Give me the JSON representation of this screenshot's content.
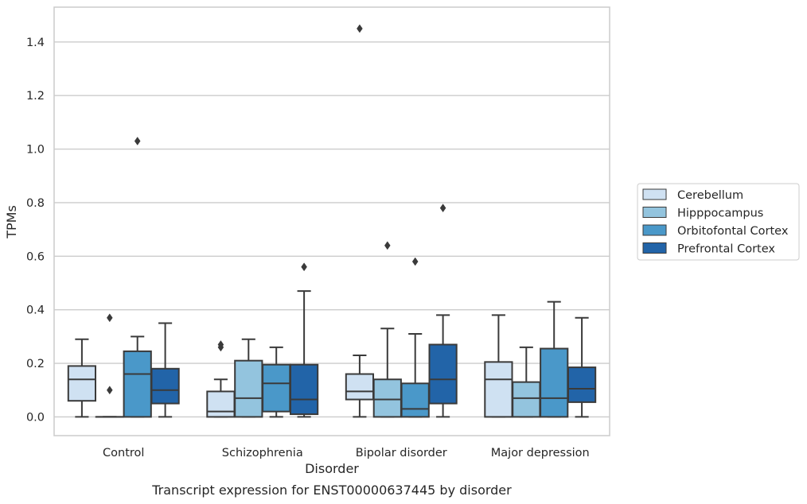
{
  "caption": "Transcript expression for ENST00000637445 by disorder",
  "chart_data": {
    "type": "box",
    "title": "",
    "xlabel": "Disorder",
    "ylabel": "TPMs",
    "ylim": [
      -0.07,
      1.53
    ],
    "yticks": [
      "0.0",
      "0.2",
      "0.4",
      "0.6",
      "0.8",
      "1.0",
      "1.2",
      "1.4"
    ],
    "grid": "horizontal",
    "legend_position": "right",
    "categories": [
      "Control",
      "Schizophrenia",
      "Bipolar disorder",
      "Major depression"
    ],
    "series": [
      {
        "name": "Cerebellum",
        "color": "#cfe1f2",
        "boxes": [
          {
            "whislo": 0.0,
            "q1": 0.06,
            "med": 0.14,
            "q3": 0.19,
            "whishi": 0.29,
            "fliers": []
          },
          {
            "whislo": 0.0,
            "q1": 0.0,
            "med": 0.02,
            "q3": 0.095,
            "whishi": 0.14,
            "fliers": [
              0.26,
              0.27
            ]
          },
          {
            "whislo": 0.0,
            "q1": 0.065,
            "med": 0.095,
            "q3": 0.16,
            "whishi": 0.23,
            "fliers": [
              1.45
            ]
          },
          {
            "whislo": 0.0,
            "q1": 0.0,
            "med": 0.14,
            "q3": 0.205,
            "whishi": 0.38,
            "fliers": []
          }
        ]
      },
      {
        "name": "Hipppocampus",
        "color": "#93c4de",
        "boxes": [
          {
            "whislo": 0.0,
            "q1": 0.0,
            "med": 0.0,
            "q3": 0.0,
            "whishi": 0.0,
            "fliers": [
              0.1,
              0.37
            ]
          },
          {
            "whislo": 0.0,
            "q1": 0.0,
            "med": 0.07,
            "q3": 0.21,
            "whishi": 0.29,
            "fliers": []
          },
          {
            "whislo": 0.0,
            "q1": 0.0,
            "med": 0.065,
            "q3": 0.14,
            "whishi": 0.33,
            "fliers": [
              0.64
            ]
          },
          {
            "whislo": 0.0,
            "q1": 0.0,
            "med": 0.07,
            "q3": 0.13,
            "whishi": 0.26,
            "fliers": []
          }
        ]
      },
      {
        "name": "Orbitofontal Cortex",
        "color": "#4a98c9",
        "boxes": [
          {
            "whislo": 0.0,
            "q1": 0.0,
            "med": 0.16,
            "q3": 0.245,
            "whishi": 0.3,
            "fliers": [
              1.03
            ]
          },
          {
            "whislo": 0.0,
            "q1": 0.02,
            "med": 0.125,
            "q3": 0.195,
            "whishi": 0.26,
            "fliers": []
          },
          {
            "whislo": 0.0,
            "q1": 0.0,
            "med": 0.03,
            "q3": 0.125,
            "whishi": 0.31,
            "fliers": [
              0.58
            ]
          },
          {
            "whislo": 0.0,
            "q1": 0.0,
            "med": 0.07,
            "q3": 0.255,
            "whishi": 0.43,
            "fliers": []
          }
        ]
      },
      {
        "name": "Prefrontal Cortex",
        "color": "#2264a8",
        "boxes": [
          {
            "whislo": 0.0,
            "q1": 0.05,
            "med": 0.1,
            "q3": 0.18,
            "whishi": 0.35,
            "fliers": []
          },
          {
            "whislo": 0.0,
            "q1": 0.01,
            "med": 0.065,
            "q3": 0.195,
            "whishi": 0.47,
            "fliers": [
              0.56
            ]
          },
          {
            "whislo": 0.0,
            "q1": 0.05,
            "med": 0.14,
            "q3": 0.27,
            "whishi": 0.38,
            "fliers": [
              0.78
            ]
          },
          {
            "whislo": 0.0,
            "q1": 0.055,
            "med": 0.105,
            "q3": 0.185,
            "whishi": 0.37,
            "fliers": []
          }
        ]
      }
    ]
  }
}
